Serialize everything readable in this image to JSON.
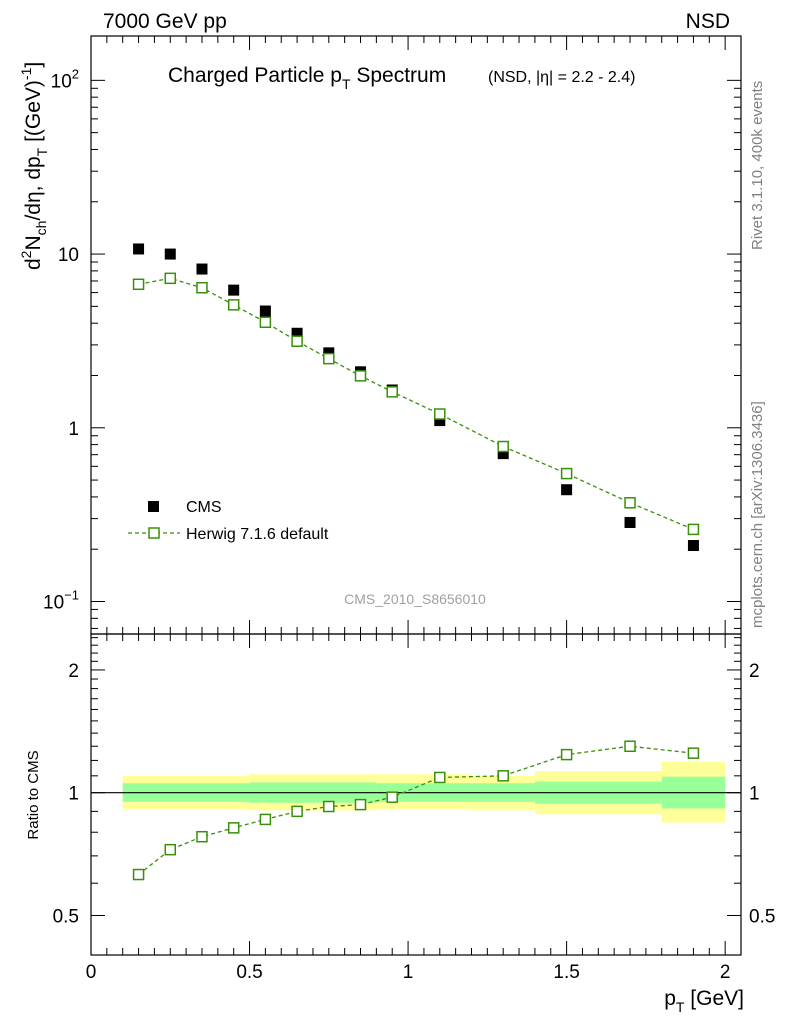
{
  "header": {
    "left": "7000 GeV pp",
    "right": "NSD"
  },
  "side": {
    "rivet": "Rivet 3.1.10,  400k events",
    "mcplots": "mcplots.cern.ch [arXiv:1306.3436]"
  },
  "chart_data": {
    "type": "scatter",
    "title": "Charged Particle p_T Spectrum",
    "title_main": "Charged Particle p",
    "title_sub": "T",
    "title_main2": " Spectrum",
    "title_extra": "(NSD, |η| = 2.2 - 2.4)",
    "watermark": "CMS_2010_S8656010",
    "ylabel": "d²N_ch/dη, dp_T [(GeV)⁻¹]",
    "ylabel_parts": {
      "d": "d",
      "two": "2",
      "n": "N",
      "ch": "ch",
      "mid": "/dη, dp",
      "t": "T",
      "bracket": " [(GeV)",
      "exp": "-1",
      "close": "]"
    },
    "xlabel": "p_T [GeV]",
    "xlabel_parts": {
      "p": "p",
      "t": "T",
      "unit": " [GeV]"
    },
    "xlim": [
      0,
      2.05
    ],
    "ylim_top": [
      0.065,
      180
    ],
    "ylim_ratio": [
      0.4,
      2.45
    ],
    "yscale_top": "log",
    "yscale_ratio": "log",
    "ratio_ylabel": "Ratio to CMS",
    "x_ticks": [
      {
        "value": 0,
        "label": "0"
      },
      {
        "value": 0.5,
        "label": "0.5"
      },
      {
        "value": 1,
        "label": "1"
      },
      {
        "value": 1.5,
        "label": "1.5"
      },
      {
        "value": 2,
        "label": "2"
      }
    ],
    "y_ticks_top": [
      {
        "value": 0.1,
        "base": "10",
        "exp": "−1"
      },
      {
        "value": 1,
        "base": "1",
        "exp": ""
      },
      {
        "value": 10,
        "base": "10",
        "exp": ""
      },
      {
        "value": 100,
        "base": "10",
        "exp": "2"
      }
    ],
    "y_ticks_ratio": [
      {
        "value": 0.5,
        "label": "0.5"
      },
      {
        "value": 1,
        "label": "1"
      },
      {
        "value": 2,
        "label": "2"
      }
    ],
    "legend": [
      {
        "name": "CMS",
        "marker": "filled-square",
        "color": "#000000"
      },
      {
        "name": "Herwig 7.1.6 default",
        "marker": "open-square-dashed",
        "color": "#3a8f0a"
      }
    ],
    "series": [
      {
        "name": "CMS",
        "x": [
          0.15,
          0.25,
          0.35,
          0.45,
          0.55,
          0.65,
          0.75,
          0.85,
          0.95,
          1.1,
          1.3,
          1.5,
          1.7,
          1.9
        ],
        "y": [
          10.7,
          10.0,
          8.2,
          6.2,
          4.7,
          3.5,
          2.7,
          2.1,
          1.65,
          1.1,
          0.71,
          0.44,
          0.285,
          0.21
        ]
      },
      {
        "name": "Herwig 7.1.6 default",
        "x": [
          0.15,
          0.25,
          0.35,
          0.45,
          0.55,
          0.65,
          0.75,
          0.85,
          0.95,
          1.1,
          1.3,
          1.5,
          1.7,
          1.9
        ],
        "y": [
          6.7,
          7.25,
          6.4,
          5.1,
          4.05,
          3.15,
          2.5,
          1.99,
          1.61,
          1.2,
          0.78,
          0.545,
          0.37,
          0.26
        ]
      }
    ],
    "ratio": {
      "x": [
        0.15,
        0.25,
        0.35,
        0.45,
        0.55,
        0.65,
        0.75,
        0.85,
        0.95,
        1.1,
        1.3,
        1.5,
        1.7,
        1.9
      ],
      "y": [
        0.63,
        0.725,
        0.78,
        0.82,
        0.86,
        0.9,
        0.925,
        0.935,
        0.975,
        1.09,
        1.1,
        1.24,
        1.3,
        1.25
      ]
    },
    "bands": {
      "bins": [
        [
          0.1,
          0.5
        ],
        [
          0.5,
          0.9
        ],
        [
          0.9,
          1.2
        ],
        [
          1.2,
          1.4
        ],
        [
          1.4,
          1.8
        ],
        [
          1.8,
          2.0
        ]
      ],
      "stat_low": [
        0.95,
        0.945,
        0.95,
        0.95,
        0.94,
        0.915
      ],
      "stat_high": [
        1.055,
        1.06,
        1.055,
        1.055,
        1.065,
        1.095
      ],
      "tot_low": [
        0.91,
        0.905,
        0.91,
        0.905,
        0.885,
        0.845
      ],
      "tot_high": [
        1.1,
        1.11,
        1.11,
        1.1,
        1.13,
        1.19
      ],
      "stat_color": "#99ff99",
      "tot_color": "#ffff99"
    }
  }
}
